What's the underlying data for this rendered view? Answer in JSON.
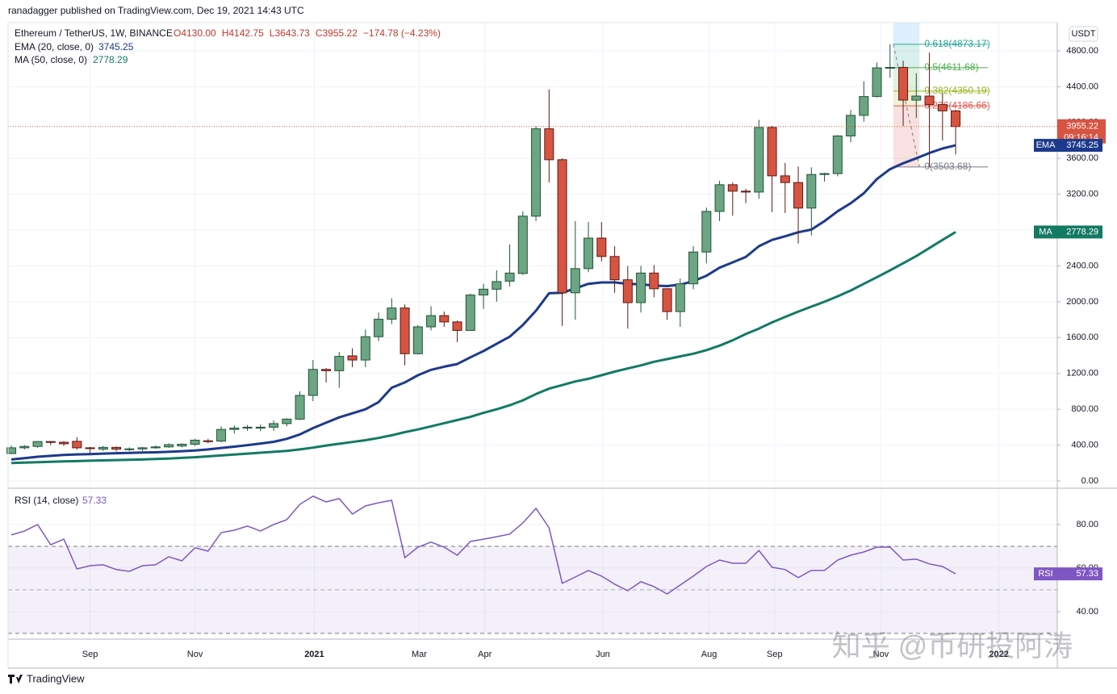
{
  "header": {
    "publisher": "ranadagger published on TradingView.com, Dec 19, 2021 14:43 UTC",
    "logo": "TradingView"
  },
  "watermark": "知乎 @币研投阿涛",
  "chart_data": [
    {
      "type": "candlestick",
      "symbol": "Ethereum / TetherUS, 1W, BINANCE",
      "ohlc_legend": [
        "O4130.00",
        "H4142.75",
        "L3643.73",
        "C3955.22",
        "−174.78 (−4.23%)"
      ],
      "currency": "USDT",
      "countdown": "09:16:14",
      "xlim": [
        -0.25,
        79.75
      ],
      "xticks": [
        {
          "value": 6.0,
          "label": "Sep"
        },
        {
          "value": 14.0,
          "label": "Nov"
        },
        {
          "value": 23.1,
          "label": "2021"
        },
        {
          "value": 31.1,
          "label": "Mar"
        },
        {
          "value": 36.1,
          "label": "Apr"
        },
        {
          "value": 45.1,
          "label": "Jun"
        },
        {
          "value": 53.2,
          "label": "Aug"
        },
        {
          "value": 58.2,
          "label": "Sep"
        },
        {
          "value": 66.3,
          "label": "Nov"
        },
        {
          "value": 75.3,
          "label": "2022"
        }
      ],
      "ylim": [
        -72,
        5115
      ],
      "yticks": [
        {
          "value": 0,
          "label": "0.00"
        },
        {
          "value": 400,
          "label": "400.00"
        },
        {
          "value": 800,
          "label": "800.00"
        },
        {
          "value": 1200,
          "label": "1200.00"
        },
        {
          "value": 1600,
          "label": "1600.00"
        },
        {
          "value": 2000,
          "label": "2000.00"
        },
        {
          "value": 2400,
          "label": "2400.00"
        },
        {
          "value": 2800,
          "label": "2800.00"
        },
        {
          "value": 3200,
          "label": "3200.00"
        },
        {
          "value": 3600,
          "label": "3600.00"
        },
        {
          "value": 4000,
          "label": "4000.00"
        },
        {
          "value": 4400,
          "label": "4400.00"
        },
        {
          "value": 4800,
          "label": "4800.00"
        }
      ],
      "grid": true,
      "up_color": "#6ba583",
      "up_border": "#225437",
      "down_color": "#d75442",
      "down_border": "#5b1a13",
      "open": [
        306,
        370,
        385,
        440,
        432,
        442,
        370,
        355,
        375,
        355,
        358,
        370,
        380,
        390,
        410,
        448,
        445,
        575,
        590,
        590,
        600,
        640,
        690,
        955,
        1245,
        1230,
        1396,
        1350,
        1610,
        1805,
        1930,
        1420,
        1720,
        1845,
        1775,
        1680,
        2075,
        2140,
        2230,
        2315,
        2955,
        3930,
        3585,
        2100,
        2370,
        2710,
        2505,
        2245,
        1990,
        2320,
        2145,
        1890,
        2200,
        2555,
        3008,
        3306,
        3234,
        3224,
        3945,
        3405,
        3330,
        3045,
        3420,
        3430,
        3850,
        4080,
        4290,
        4605,
        4615,
        4250,
        4295,
        4200,
        4130
      ],
      "high": [
        395,
        400,
        445,
        445,
        445,
        488,
        380,
        390,
        385,
        375,
        380,
        395,
        420,
        420,
        470,
        470,
        610,
        620,
        625,
        630,
        675,
        700,
        1000,
        1350,
        1260,
        1440,
        1480,
        1690,
        1880,
        2040,
        1970,
        1740,
        1950,
        1890,
        1790,
        2090,
        2200,
        2350,
        2640,
        3010,
        3960,
        4370,
        3600,
        2900,
        2890,
        2890,
        2620,
        2400,
        2400,
        2410,
        2150,
        2260,
        2620,
        3050,
        3350,
        3330,
        3260,
        4030,
        3960,
        3550,
        3510,
        3500,
        3440,
        3860,
        4140,
        4460,
        4670,
        4873.17,
        4690,
        4550,
        4780,
        4330,
        4142.75
      ],
      "low": [
        300,
        350,
        370,
        400,
        390,
        350,
        310,
        335,
        330,
        335,
        335,
        360,
        370,
        375,
        390,
        420,
        430,
        530,
        560,
        555,
        560,
        610,
        680,
        890,
        1100,
        1040,
        1270,
        1270,
        1560,
        1750,
        1290,
        1410,
        1680,
        1720,
        1550,
        1680,
        1920,
        2000,
        2170,
        2300,
        2900,
        3330,
        1730,
        1800,
        2330,
        2450,
        2100,
        1700,
        1880,
        2050,
        1800,
        1720,
        2140,
        2430,
        2900,
        2960,
        3100,
        3150,
        3000,
        2990,
        2650,
        2740,
        3340,
        3400,
        3780,
        4010,
        4280,
        4500,
        3960,
        4050,
        3503.68,
        3800,
        3643.73
      ],
      "close": [
        370,
        385,
        440,
        430,
        415,
        370,
        365,
        375,
        355,
        358,
        370,
        380,
        405,
        410,
        455,
        445,
        575,
        590,
        600,
        600,
        640,
        690,
        955,
        1245,
        1230,
        1390,
        1350,
        1610,
        1805,
        1930,
        1420,
        1720,
        1845,
        1775,
        1680,
        2075,
        2140,
        2225,
        2320,
        2955,
        3930,
        3585,
        2100,
        2370,
        2710,
        2505,
        2245,
        1990,
        2320,
        2145,
        1890,
        2200,
        2555,
        3008,
        3306,
        3234,
        3224,
        3945,
        3405,
        3330,
        3045,
        3420,
        3430,
        3850,
        4080,
        4290,
        4610,
        4615,
        4250,
        4295,
        4200,
        4130,
        3955.22
      ],
      "series": [
        {
          "name": "EMA",
          "legend": "EMA (20, close, 0)",
          "color": "#1c3a8c",
          "values": [
            240,
            255,
            270,
            280,
            290,
            296,
            300,
            305,
            310,
            313,
            317,
            320,
            325,
            332,
            340,
            352,
            368,
            383,
            400,
            418,
            437,
            470,
            520,
            590,
            650,
            710,
            755,
            800,
            880,
            1040,
            1100,
            1180,
            1240,
            1275,
            1305,
            1380,
            1450,
            1530,
            1610,
            1740,
            1900,
            2095,
            2100,
            2150,
            2200,
            2215,
            2215,
            2200,
            2195,
            2180,
            2175,
            2190,
            2230,
            2290,
            2380,
            2440,
            2500,
            2620,
            2690,
            2730,
            2775,
            2805,
            2900,
            3010,
            3100,
            3210,
            3370,
            3480,
            3545,
            3600,
            3660,
            3710,
            3745.25
          ]
        },
        {
          "name": "MA",
          "legend": "MA (50, close, 0)",
          "color": "#137a64",
          "values": [
            200,
            205,
            210,
            214,
            218,
            222,
            226,
            230,
            233,
            236,
            240,
            245,
            250,
            258,
            265,
            275,
            285,
            295,
            305,
            315,
            325,
            335,
            352,
            372,
            395,
            415,
            435,
            455,
            480,
            510,
            545,
            575,
            610,
            645,
            680,
            715,
            760,
            800,
            845,
            900,
            970,
            1030,
            1070,
            1110,
            1140,
            1180,
            1220,
            1255,
            1290,
            1330,
            1360,
            1390,
            1420,
            1460,
            1510,
            1570,
            1640,
            1700,
            1770,
            1830,
            1890,
            1945,
            2000,
            2060,
            2125,
            2200,
            2275,
            2350,
            2430,
            2510,
            2600,
            2690,
            2778.29
          ]
        }
      ],
      "fibonacci": [
        {
          "label": "0.618(4873.17)",
          "value": 4873.17,
          "color": "#26a69a"
        },
        {
          "label": "0.5(4611.68)",
          "value": 4611.68,
          "color": "#4caf50"
        },
        {
          "label": "0.382(4350.19)",
          "value": 4350.19,
          "color": "#9bb31a"
        },
        {
          "label": "0.236(4186.66)",
          "value": 4186.66,
          "color": "#e0574f"
        },
        {
          "label": "0(3503.68)",
          "value": 3503.68,
          "color": "#787b86"
        }
      ]
    },
    {
      "type": "line",
      "name": "RSI",
      "legend": "RSI (14, close)",
      "color": "#7e57c2",
      "ylim": [
        28.1,
        96.3
      ],
      "yticks": [
        {
          "value": 80,
          "label": "80.00"
        },
        {
          "value": 60,
          "label": "60.00"
        },
        {
          "value": 40,
          "label": "40.00"
        }
      ],
      "band": [
        30,
        70
      ],
      "midline": 50,
      "values": [
        75.2,
        77,
        80,
        70.7,
        73.3,
        59.6,
        61.1,
        61.5,
        59.3,
        58.5,
        61.1,
        61.5,
        65.2,
        63.3,
        69.3,
        67.8,
        76.3,
        77.4,
        79.3,
        77,
        80,
        82.2,
        89.3,
        93,
        90.4,
        91.9,
        84.8,
        88.5,
        90,
        91.1,
        64.8,
        69.6,
        71.9,
        69.6,
        65.9,
        72.2,
        73.3,
        74.4,
        75.6,
        80.7,
        87.4,
        78.5,
        53,
        55.9,
        58.9,
        56.3,
        52.6,
        49.6,
        53.7,
        51.5,
        48.1,
        52.2,
        56.3,
        60.7,
        63.7,
        62.2,
        62.2,
        68.1,
        60.4,
        59.3,
        55.6,
        58.9,
        58.9,
        63.7,
        65.9,
        67.4,
        69.6,
        69.6,
        63.7,
        64.1,
        61.9,
        60.7,
        57.33
      ]
    }
  ]
}
